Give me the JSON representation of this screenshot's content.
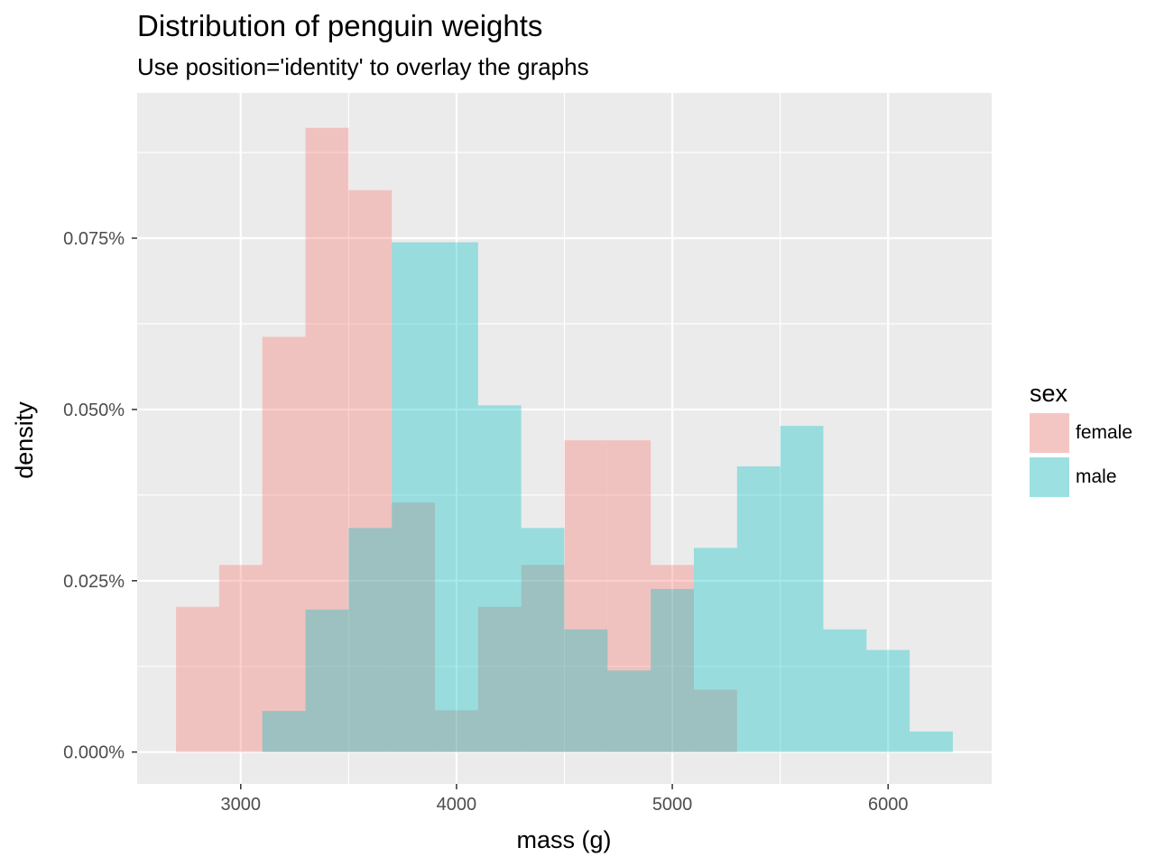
{
  "chart_data": {
    "type": "histogram",
    "title": "Distribution of penguin weights",
    "subtitle": "Use position='identity' to overlay the graphs",
    "xlabel": "mass (g)",
    "ylabel": "density",
    "xlim": [
      2520,
      6480
    ],
    "ylim": [
      -4.65e-05,
      0.000962
    ],
    "x_ticks": [
      3000,
      4000,
      5000,
      6000
    ],
    "x_tick_labels": [
      "3000",
      "4000",
      "5000",
      "6000"
    ],
    "x_minor_ticks": [
      3500,
      4500,
      5500
    ],
    "y_ticks": [
      0,
      0.00025,
      0.0005,
      0.00075
    ],
    "y_tick_labels": [
      "0.000%",
      "0.025%",
      "0.050%",
      "0.075%"
    ],
    "y_minor_ticks": [
      0.000125,
      0.000375,
      0.000625,
      0.000875
    ],
    "grid": true,
    "legend": {
      "title": "sex",
      "position": "right"
    },
    "bin_width": 200,
    "series": [
      {
        "name": "female",
        "color": "#F8766D",
        "bins": [
          {
            "x0": 2700,
            "x1": 2900,
            "y": 0.000212
          },
          {
            "x0": 2900,
            "x1": 3100,
            "y": 0.000273
          },
          {
            "x0": 3100,
            "x1": 3300,
            "y": 0.000606
          },
          {
            "x0": 3300,
            "x1": 3500,
            "y": 0.000911
          },
          {
            "x0": 3500,
            "x1": 3700,
            "y": 0.00082
          },
          {
            "x0": 3700,
            "x1": 3900,
            "y": 0.000364
          },
          {
            "x0": 3900,
            "x1": 4100,
            "y": 6.1e-05
          },
          {
            "x0": 4100,
            "x1": 4300,
            "y": 0.000212
          },
          {
            "x0": 4300,
            "x1": 4500,
            "y": 0.000273
          },
          {
            "x0": 4500,
            "x1": 4700,
            "y": 0.000455
          },
          {
            "x0": 4700,
            "x1": 4900,
            "y": 0.000455
          },
          {
            "x0": 4900,
            "x1": 5100,
            "y": 0.000273
          },
          {
            "x0": 5100,
            "x1": 5300,
            "y": 9.1e-05
          }
        ]
      },
      {
        "name": "male",
        "color": "#00BFC4",
        "bins": [
          {
            "x0": 3100,
            "x1": 3300,
            "y": 6e-05
          },
          {
            "x0": 3300,
            "x1": 3500,
            "y": 0.000208
          },
          {
            "x0": 3500,
            "x1": 3700,
            "y": 0.000327
          },
          {
            "x0": 3700,
            "x1": 3900,
            "y": 0.000744
          },
          {
            "x0": 3900,
            "x1": 4100,
            "y": 0.000744
          },
          {
            "x0": 4100,
            "x1": 4300,
            "y": 0.000506
          },
          {
            "x0": 4300,
            "x1": 4500,
            "y": 0.000327
          },
          {
            "x0": 4500,
            "x1": 4700,
            "y": 0.000179
          },
          {
            "x0": 4700,
            "x1": 4900,
            "y": 0.000119
          },
          {
            "x0": 4900,
            "x1": 5100,
            "y": 0.000238
          },
          {
            "x0": 5100,
            "x1": 5300,
            "y": 0.000298
          },
          {
            "x0": 5300,
            "x1": 5500,
            "y": 0.000417
          },
          {
            "x0": 5500,
            "x1": 5700,
            "y": 0.000476
          },
          {
            "x0": 5700,
            "x1": 5900,
            "y": 0.000179
          },
          {
            "x0": 5900,
            "x1": 6100,
            "y": 0.000149
          },
          {
            "x0": 6100,
            "x1": 6300,
            "y": 3e-05
          }
        ]
      }
    ]
  },
  "colors": {
    "panel_background": "#EBEBEB",
    "grid_major": "#FFFFFF",
    "tick_color": "#333333"
  }
}
